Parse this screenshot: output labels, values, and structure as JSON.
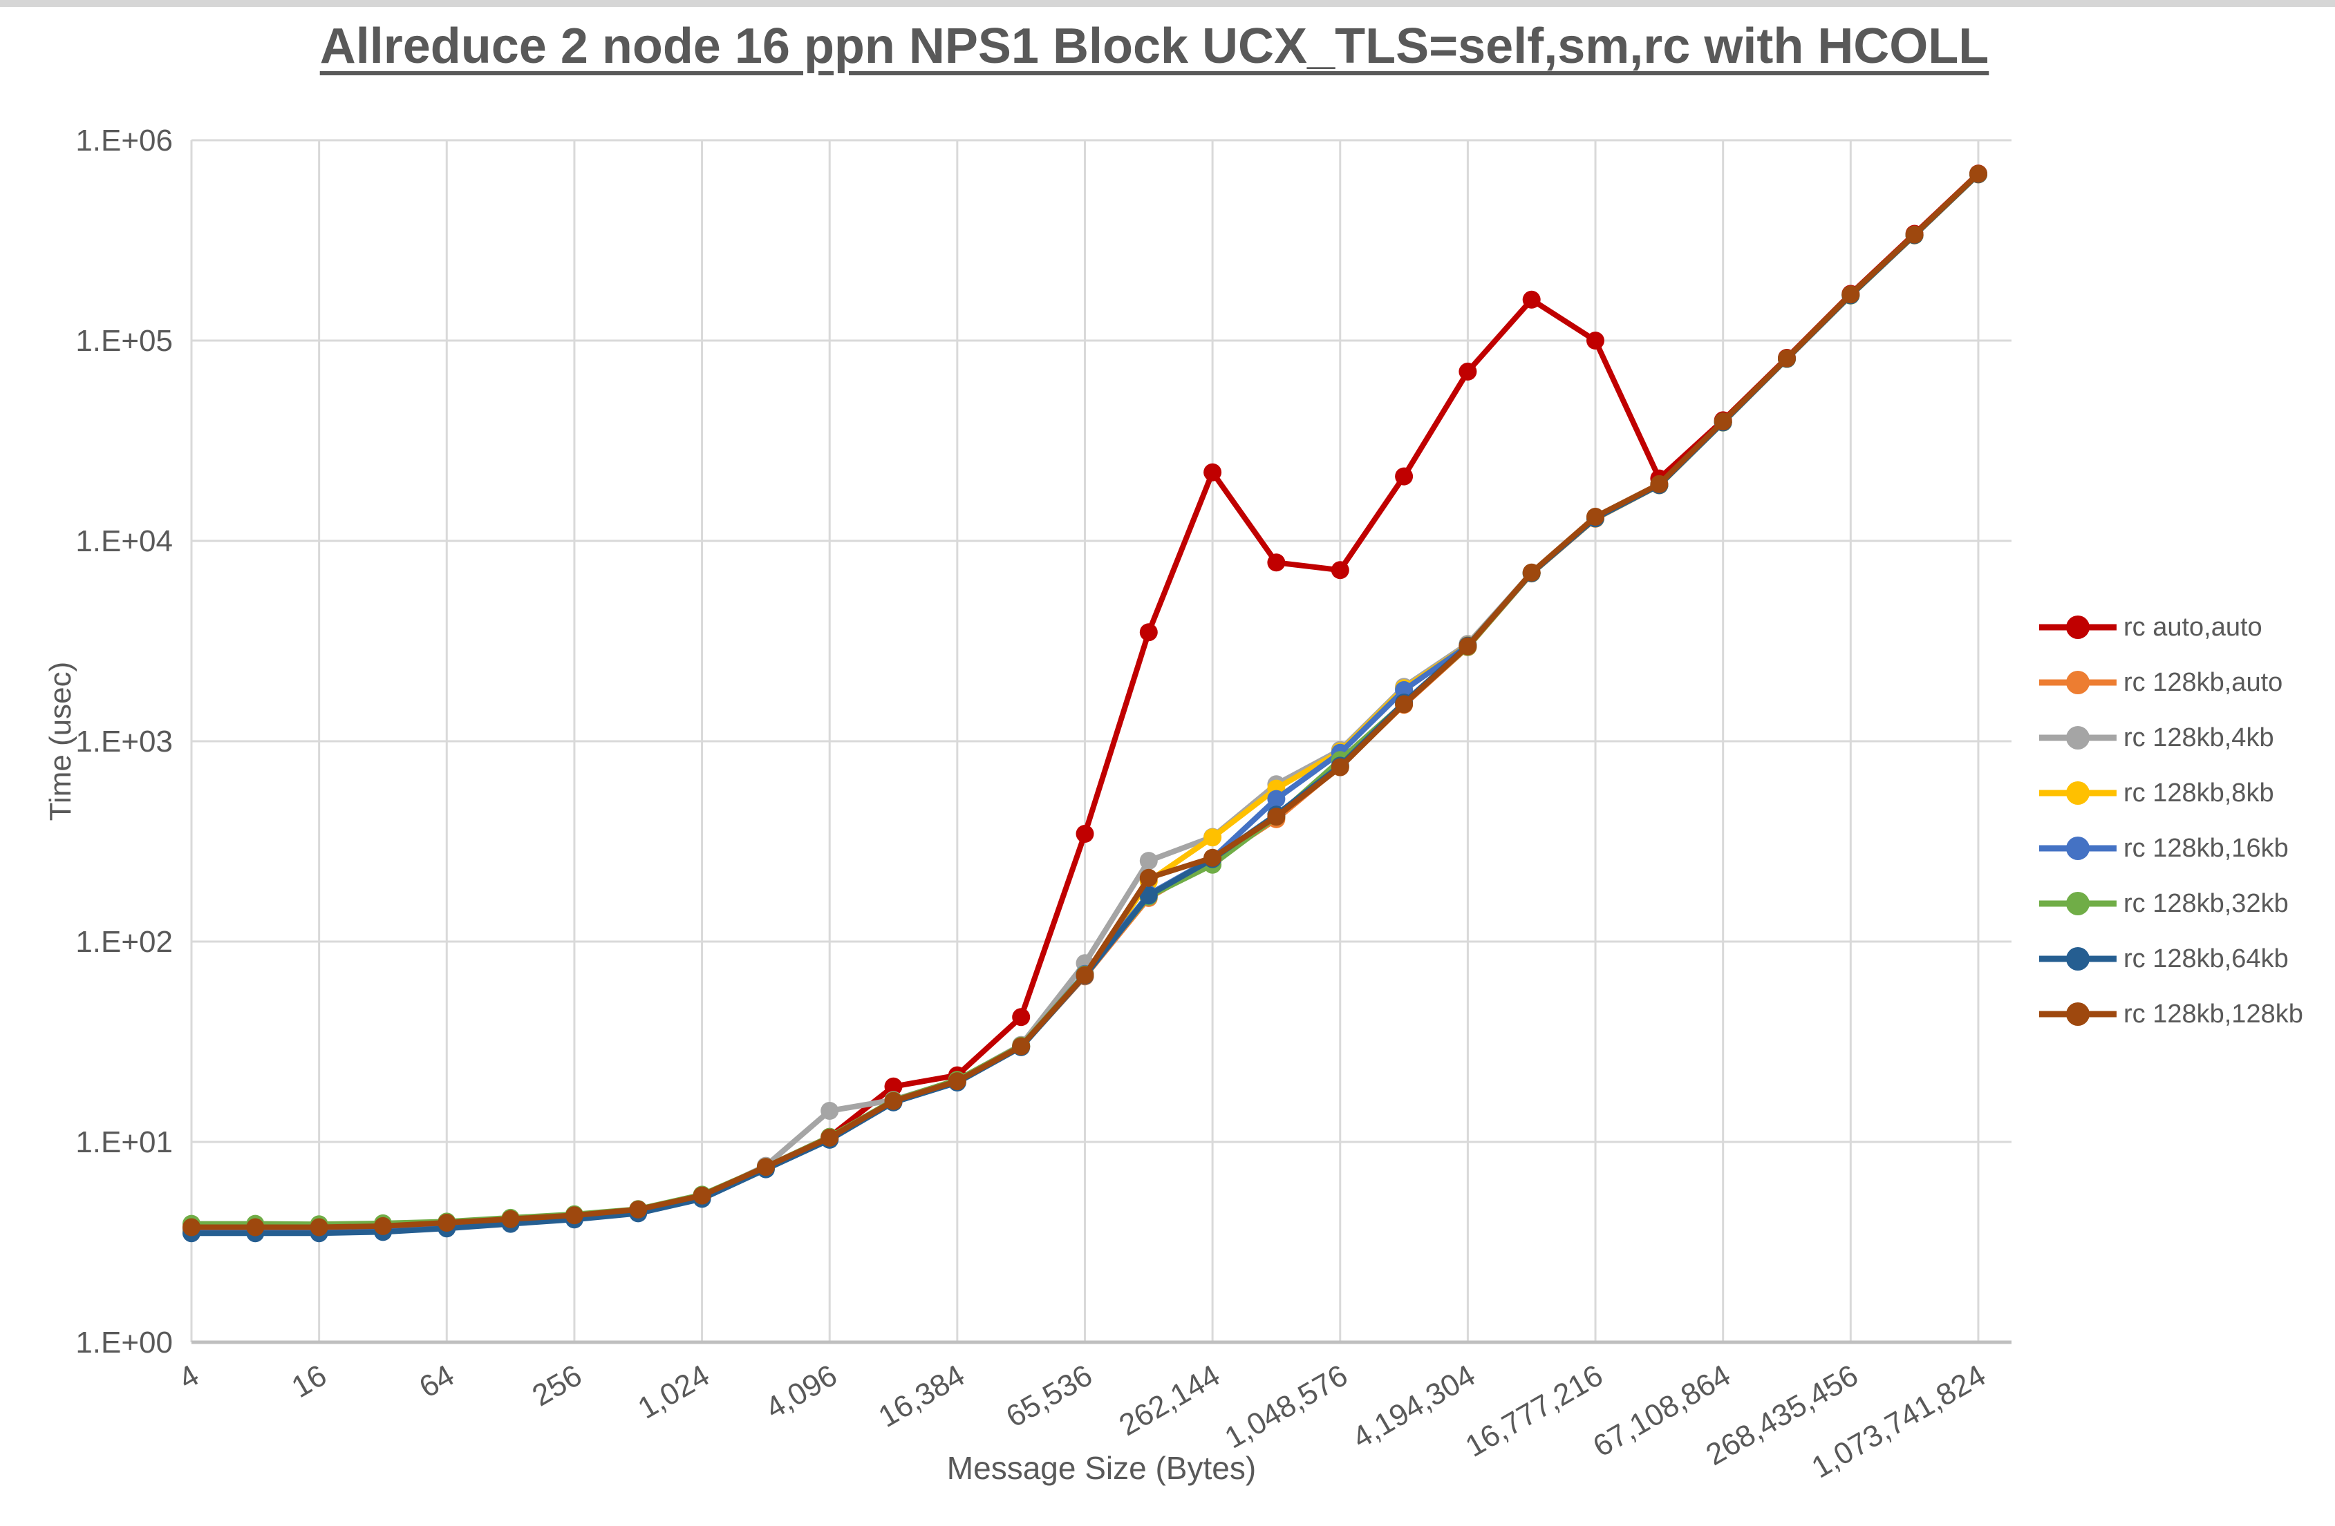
{
  "window": {
    "top_edge_color": "#d6d6d6"
  },
  "chart_data": {
    "type": "line",
    "title": "Allreduce 2 node 16 ppn NPS1 Block UCX_TLS=self,sm,rc with HCOLL",
    "xlabel": "Message Size (Bytes)",
    "ylabel": "Time (usec)",
    "x_scale": "log2",
    "y_scale": "log10",
    "grid": true,
    "legend_position": "right",
    "ylim": [
      1,
      1000000
    ],
    "y_ticks": [
      "1.E+00",
      "1.E+01",
      "1.E+02",
      "1.E+03",
      "1.E+04",
      "1.E+05",
      "1.E+06"
    ],
    "x_ticks": [
      "4",
      "16",
      "64",
      "256",
      "1,024",
      "4,096",
      "16,384",
      "65,536",
      "262,144",
      "1,048,576",
      "4,194,304",
      "16,777,216",
      "67,108,864",
      "268,435,456",
      "1,073,741,824"
    ],
    "x": [
      4,
      8,
      16,
      32,
      64,
      128,
      256,
      512,
      1024,
      2048,
      4096,
      8192,
      16384,
      32768,
      65536,
      131072,
      262144,
      524288,
      1048576,
      2097152,
      4194304,
      8388608,
      16777216,
      33554432,
      67108864,
      134217728,
      268435456,
      536870912,
      1073741824
    ],
    "colors": {
      "gridline": "#d9d9d9",
      "axis_line": "#bfbfbf",
      "text": "#595959"
    },
    "series": [
      {
        "name": "rc auto,auto",
        "color": "#C00000",
        "values": [
          3.7,
          3.7,
          3.7,
          3.75,
          3.9,
          4.1,
          4.3,
          4.6,
          5.4,
          7.5,
          10.6,
          18.9,
          21.5,
          42,
          345,
          3500,
          22000,
          7800,
          7150,
          21000,
          70000,
          160000,
          100000,
          20500,
          40000,
          82000,
          171000,
          341000,
          682000
        ]
      },
      {
        "name": "rc 128kb,auto",
        "color": "#ED7D31",
        "values": [
          3.6,
          3.6,
          3.6,
          3.65,
          3.8,
          4.0,
          4.2,
          4.5,
          5.3,
          7.4,
          10.3,
          15.8,
          19.9,
          29.8,
          67,
          165,
          252,
          408,
          750,
          1520,
          2950,
          6880,
          12900,
          18950,
          39000,
          81000,
          168000,
          335000,
          675000
        ]
      },
      {
        "name": "rc 128kb,4kb",
        "color": "#A5A5A5",
        "values": [
          3.65,
          3.65,
          3.65,
          3.7,
          3.85,
          4.05,
          4.25,
          4.55,
          5.35,
          7.6,
          14.3,
          16.2,
          20.3,
          30.5,
          78,
          253,
          333,
          610,
          905,
          1870,
          3060,
          6940,
          13100,
          19100,
          39200,
          81300,
          169000,
          337000,
          678000
        ]
      },
      {
        "name": "rc 128kb,8kb",
        "color": "#FFC000",
        "values": [
          3.55,
          3.55,
          3.55,
          3.6,
          3.75,
          3.95,
          4.15,
          4.45,
          5.25,
          7.35,
          10.4,
          15.9,
          20.0,
          29.9,
          68,
          200,
          331,
          580,
          890,
          1840,
          3010,
          6900,
          13000,
          19000,
          39050,
          81100,
          168200,
          335500,
          676000
        ]
      },
      {
        "name": "rc 128kb,16kb",
        "color": "#4472C4",
        "values": [
          3.7,
          3.7,
          3.7,
          3.72,
          3.85,
          4.05,
          4.25,
          4.5,
          5.3,
          7.4,
          10.45,
          16.0,
          20.2,
          30.0,
          69,
          172,
          260,
          515,
          875,
          1800,
          3000,
          6910,
          13000,
          19000,
          39100,
          81200,
          168500,
          336000,
          677000
        ]
      },
      {
        "name": "rc 128kb,32kb",
        "color": "#70AD47",
        "values": [
          3.9,
          3.9,
          3.88,
          3.92,
          4.0,
          4.18,
          4.35,
          4.62,
          5.45,
          7.5,
          10.6,
          16.1,
          20.4,
          30.2,
          68.5,
          168,
          242,
          420,
          805,
          1545,
          2960,
          6890,
          12950,
          18980,
          39000,
          81000,
          168000,
          335500,
          676000
        ]
      },
      {
        "name": "rc 128kb,64kb",
        "color": "#255E91",
        "values": [
          3.5,
          3.5,
          3.5,
          3.55,
          3.7,
          3.9,
          4.1,
          4.4,
          5.2,
          7.3,
          10.25,
          15.75,
          19.8,
          29.7,
          67.5,
          170,
          258,
          430,
          755,
          1560,
          3000,
          6900,
          12980,
          19000,
          39050,
          81100,
          168300,
          336000,
          676500
        ]
      },
      {
        "name": "rc 128kb,128kb",
        "color": "#9E480E",
        "values": [
          3.75,
          3.75,
          3.75,
          3.8,
          3.95,
          4.12,
          4.3,
          4.6,
          5.4,
          7.5,
          10.5,
          16.0,
          20.1,
          30.0,
          68,
          208,
          262,
          420,
          742,
          1530,
          2980,
          6950,
          13200,
          19200,
          39500,
          81500,
          170000,
          338000,
          680000
        ]
      }
    ]
  }
}
